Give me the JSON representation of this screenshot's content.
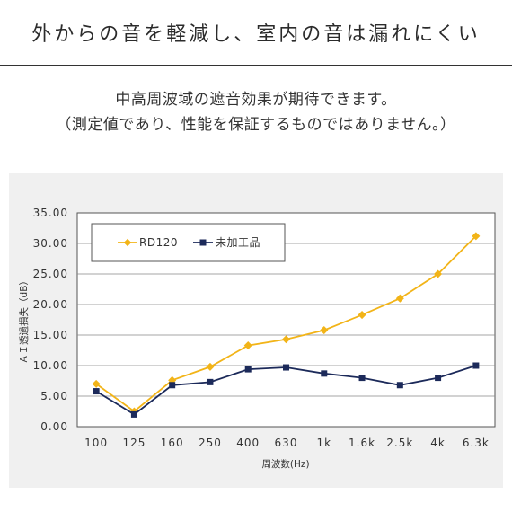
{
  "header": {
    "title": "外からの音を軽減し、室内の音は漏れにくい"
  },
  "subtitle": {
    "line1": "中高周波域の遮音効果が期待できます。",
    "line2": "（測定値であり、性能を保証するものではありません。）"
  },
  "colors": {
    "rd120": "#f2b418",
    "untreated": "#1c2a5a",
    "panel": "#f0f0f0",
    "plot_bg": "#ffffff",
    "grid": "#888888"
  },
  "chart_data": {
    "type": "line",
    "title": "",
    "xlabel": "周波数(Hz)",
    "ylabel": "ＡＩ透過損失（dB）",
    "categories": [
      "100",
      "125",
      "160",
      "250",
      "400",
      "630",
      "1k",
      "1.6k",
      "2.5k",
      "4k",
      "6.3k"
    ],
    "ylim": [
      0,
      35
    ],
    "yticks": [
      "0.00",
      "5.00",
      "10.00",
      "15.00",
      "20.00",
      "25.00",
      "30.00",
      "35.00"
    ],
    "grid": true,
    "legend_position": "top-left",
    "series": [
      {
        "name": "RD120",
        "marker": "diamond",
        "values": [
          7.0,
          2.5,
          7.6,
          9.8,
          13.3,
          14.3,
          15.8,
          18.3,
          21.0,
          25.0,
          31.2
        ]
      },
      {
        "name": "未加工品",
        "marker": "square",
        "values": [
          5.8,
          2.0,
          6.8,
          7.3,
          9.4,
          9.7,
          8.7,
          8.0,
          6.8,
          8.0,
          10.0
        ]
      }
    ]
  }
}
